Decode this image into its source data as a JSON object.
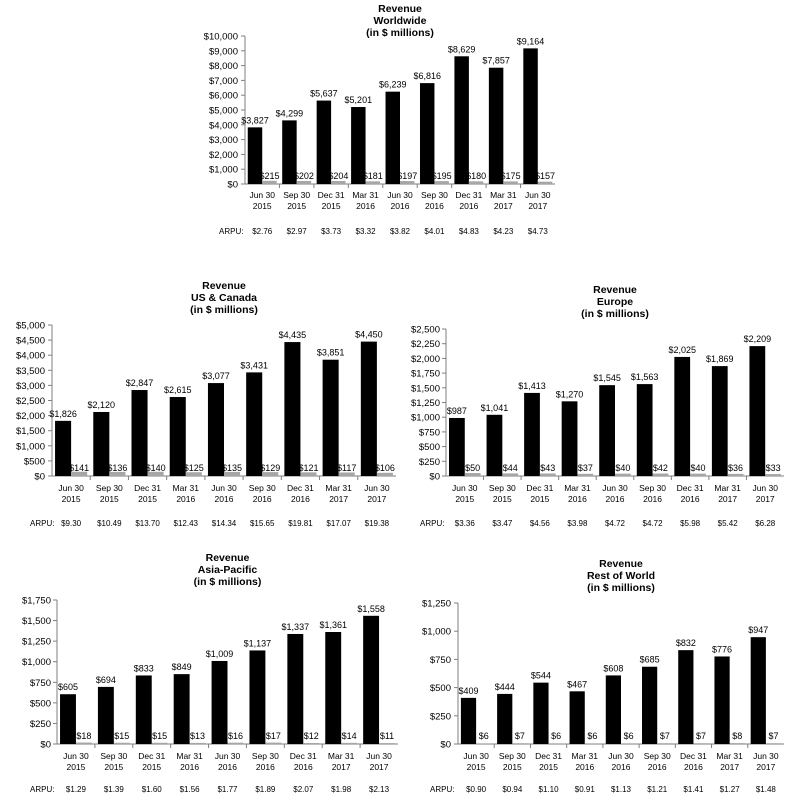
{
  "categories": [
    "Jun 30 2015",
    "Sep 30 2015",
    "Dec 31 2015",
    "Mar 31 2016",
    "Jun 30 2016",
    "Sep 30 2016",
    "Dec 31 2016",
    "Mar 31 2017",
    "Jun 30 2017"
  ],
  "colors": {
    "revenue": "#000000",
    "second": "#a6a6a6",
    "axis": "#7f7f7f"
  },
  "chart_data": [
    {
      "type": "bar",
      "title": [
        "Revenue",
        "Worldwide",
        "(in $ millions)"
      ],
      "ylim": [
        0,
        10000
      ],
      "yticks": [
        0,
        1000,
        2000,
        3000,
        4000,
        5000,
        6000,
        7000,
        8000,
        9000,
        10000
      ],
      "tick_labels": [
        "$0",
        "$1,000",
        "$2,000",
        "$3,000",
        "$4,000",
        "$5,000",
        "$6,000",
        "$7,000",
        "$8,000",
        "$9,000",
        "$10,000"
      ],
      "series": [
        {
          "values": [
            3827,
            4299,
            5637,
            5201,
            6239,
            6816,
            8629,
            7857,
            9164
          ],
          "labels": [
            "$3,827",
            "$4,299",
            "$5,637",
            "$5,201",
            "$6,239",
            "$6,816",
            "$8,629",
            "$7,857",
            "$9,164"
          ]
        },
        {
          "values": [
            215,
            202,
            204,
            181,
            197,
            195,
            180,
            175,
            157
          ],
          "labels": [
            "$215",
            "$202",
            "$204",
            "$181",
            "$197",
            "$195",
            "$180",
            "$175",
            "$157"
          ]
        }
      ],
      "arpu_label": "ARPU:",
      "arpu": [
        "$2.76",
        "$2.97",
        "$3.73",
        "$3.32",
        "$3.82",
        "$4.01",
        "$4.83",
        "$4.23",
        "$4.73"
      ]
    },
    {
      "type": "bar",
      "title": [
        "Revenue",
        "US & Canada",
        "(in $ millions)"
      ],
      "ylim": [
        0,
        5000
      ],
      "yticks": [
        0,
        500,
        1000,
        1500,
        2000,
        2500,
        3000,
        3500,
        4000,
        4500,
        5000
      ],
      "tick_labels": [
        "$0",
        "$500",
        "$1,000",
        "$1,500",
        "$2,000",
        "$2,500",
        "$3,000",
        "$3,500",
        "$4,000",
        "$4,500",
        "$5,000"
      ],
      "series": [
        {
          "values": [
            1826,
            2120,
            2847,
            2615,
            3077,
            3431,
            4435,
            3851,
            4450
          ],
          "labels": [
            "$1,826",
            "$2,120",
            "$2,847",
            "$2,615",
            "$3,077",
            "$3,431",
            "$4,435",
            "$3,851",
            "$4,450"
          ]
        },
        {
          "values": [
            141,
            136,
            140,
            125,
            135,
            129,
            121,
            117,
            106
          ],
          "labels": [
            "$141",
            "$136",
            "$140",
            "$125",
            "$135",
            "$129",
            "$121",
            "$117",
            "$106"
          ]
        }
      ],
      "arpu_label": "ARPU:",
      "arpu": [
        "$9.30",
        "$10.49",
        "$13.70",
        "$12.43",
        "$14.34",
        "$15.65",
        "$19.81",
        "$17.07",
        "$19.38"
      ]
    },
    {
      "type": "bar",
      "title": [
        "Revenue",
        "Europe",
        "(in $ millions)"
      ],
      "ylim": [
        0,
        2500
      ],
      "yticks": [
        0,
        250,
        500,
        750,
        1000,
        1250,
        1500,
        1750,
        2000,
        2250,
        2500
      ],
      "tick_labels": [
        "$0",
        "$250",
        "$500",
        "$750",
        "$1,000",
        "$1,250",
        "$1,500",
        "$1,750",
        "$2,000",
        "$2,250",
        "$2,500"
      ],
      "series": [
        {
          "values": [
            987,
            1041,
            1413,
            1270,
            1545,
            1563,
            2025,
            1869,
            2209
          ],
          "labels": [
            "$987",
            "$1,041",
            "$1,413",
            "$1,270",
            "$1,545",
            "$1,563",
            "$2,025",
            "$1,869",
            "$2,209"
          ]
        },
        {
          "values": [
            50,
            44,
            43,
            37,
            40,
            42,
            40,
            36,
            33
          ],
          "labels": [
            "$50",
            "$44",
            "$43",
            "$37",
            "$40",
            "$42",
            "$40",
            "$36",
            "$33"
          ]
        }
      ],
      "arpu_label": "ARPU:",
      "arpu": [
        "$3.36",
        "$3.47",
        "$4.56",
        "$3.98",
        "$4.72",
        "$4.72",
        "$5.98",
        "$5.42",
        "$6.28"
      ]
    },
    {
      "type": "bar",
      "title": [
        "Revenue",
        "Asia-Pacific",
        "(in $ millions)"
      ],
      "ylim": [
        0,
        1750
      ],
      "yticks": [
        0,
        250,
        500,
        750,
        1000,
        1250,
        1500,
        1750
      ],
      "tick_labels": [
        "$0",
        "$250",
        "$500",
        "$750",
        "$1,000",
        "$1,250",
        "$1,500",
        "$1,750"
      ],
      "series": [
        {
          "values": [
            605,
            694,
            833,
            849,
            1009,
            1137,
            1337,
            1361,
            1558
          ],
          "labels": [
            "$605",
            "$694",
            "$833",
            "$849",
            "$1,009",
            "$1,137",
            "$1,337",
            "$1,361",
            "$1,558"
          ]
        },
        {
          "values": [
            18,
            15,
            15,
            13,
            16,
            17,
            12,
            14,
            11
          ],
          "labels": [
            "$18",
            "$15",
            "$15",
            "$13",
            "$16",
            "$17",
            "$12",
            "$14",
            "$11"
          ]
        }
      ],
      "arpu_label": "ARPU:",
      "arpu": [
        "$1.29",
        "$1.39",
        "$1.60",
        "$1.56",
        "$1.77",
        "$1.89",
        "$2.07",
        "$1.98",
        "$2.13"
      ]
    },
    {
      "type": "bar",
      "title": [
        "Revenue",
        "Rest of World",
        "(in $ millions)"
      ],
      "ylim": [
        0,
        1250
      ],
      "yticks": [
        0,
        250,
        500,
        750,
        1000,
        1250
      ],
      "tick_labels": [
        "$0",
        "$250",
        "$500",
        "$750",
        "$1,000",
        "$1,250"
      ],
      "series": [
        {
          "values": [
            409,
            444,
            544,
            467,
            608,
            685,
            832,
            776,
            947
          ],
          "labels": [
            "$409",
            "$444",
            "$544",
            "$467",
            "$608",
            "$685",
            "$832",
            "$776",
            "$947"
          ]
        },
        {
          "values": [
            6,
            7,
            6,
            6,
            6,
            7,
            7,
            8,
            7
          ],
          "labels": [
            "$6",
            "$7",
            "$6",
            "$6",
            "$6",
            "$7",
            "$7",
            "$8",
            "$7"
          ]
        }
      ],
      "arpu_label": "ARPU:",
      "arpu": [
        "$0.90",
        "$0.94",
        "$1.10",
        "$0.91",
        "$1.13",
        "$1.21",
        "$1.41",
        "$1.27",
        "$1.48"
      ]
    }
  ]
}
